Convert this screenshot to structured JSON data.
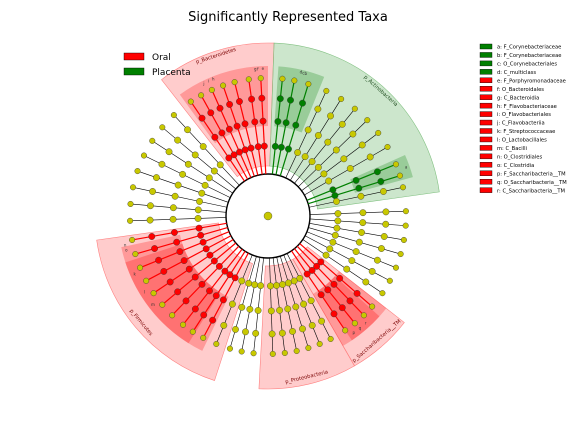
{
  "chart_data": {
    "type": "cladogram",
    "title": "Significantly Represented Taxa",
    "colors": {
      "Oral": "#ff0000",
      "Placenta": "#008000",
      "Oral_shade": "#ff8080",
      "Placenta_shade": "#80c080",
      "neutral_node": "#c8c800"
    },
    "legend": {
      "placement": "top-left",
      "entries": [
        {
          "label": "Oral",
          "color": "#ff0000"
        },
        {
          "label": "Placenta",
          "color": "#008000"
        }
      ]
    },
    "taxa_key": [
      {
        "text": "a: F_Corynebacteriaceae",
        "group": "Placenta"
      },
      {
        "text": "b: F_Corynebacteriaceae",
        "group": "Placenta"
      },
      {
        "text": "c: O_Corynebacteriales",
        "group": "Placenta"
      },
      {
        "text": "d: C_multiclass",
        "group": "Placenta"
      },
      {
        "text": "e: F_Porphyromonadaceae",
        "group": "Oral"
      },
      {
        "text": "f: O_Bacteroidales",
        "group": "Oral"
      },
      {
        "text": "g: C_Bacteroidia",
        "group": "Oral"
      },
      {
        "text": "h: F_Flavobacteriaceae",
        "group": "Oral"
      },
      {
        "text": "i: O_Flavobacteriales",
        "group": "Oral"
      },
      {
        "text": "j: C_Flavobacteriia",
        "group": "Oral"
      },
      {
        "text": "k: F_Streptococcaceae",
        "group": "Oral"
      },
      {
        "text": "l: O_Lactobacillales",
        "group": "Oral"
      },
      {
        "text": "m: C_Bacilli",
        "group": "Oral"
      },
      {
        "text": "n: O_Clostridiales",
        "group": "Oral"
      },
      {
        "text": "o: C_Clostridia",
        "group": "Oral"
      },
      {
        "text": "p: F_Saccharibacteria__TM",
        "group": "Oral"
      },
      {
        "text": "q: O_Saccharibacteria__TM",
        "group": "Oral"
      },
      {
        "text": "r: C_Saccharibacteria__TM",
        "group": "Oral"
      }
    ],
    "phylum_sectors": [
      {
        "label": "p_Bacteroidetes",
        "group": "Oral",
        "start": 322,
        "end": 2
      },
      {
        "label": "p_Actinobacteria",
        "group": "Placenta",
        "start": 2,
        "end": 82
      },
      {
        "label": "p_Proteobacteria",
        "group": "Oral",
        "start": 150,
        "end": 183
      },
      {
        "label": "p_Saccharibacteria__TM",
        "group": "Oral",
        "start": 128,
        "end": 150
      },
      {
        "label": "p_Firmicutes",
        "group": "Oral",
        "start": 198,
        "end": 262
      }
    ],
    "class_sectors": [
      {
        "group": "Oral",
        "start": 324,
        "end": 348
      },
      {
        "group": "Oral",
        "start": 348,
        "end": 0
      },
      {
        "group": "Placenta",
        "start": 4,
        "end": 22
      },
      {
        "group": "Placenta",
        "start": 66,
        "end": 75
      },
      {
        "group": "Oral",
        "start": 206,
        "end": 258
      },
      {
        "group": "Oral",
        "start": 212,
        "end": 252
      },
      {
        "group": "Oral",
        "start": 128,
        "end": 150
      },
      {
        "group": "Oral",
        "start": 132,
        "end": 146
      }
    ],
    "sector_letters": [
      {
        "letter": "j",
        "angle": 334
      },
      {
        "letter": "i",
        "angle": 336
      },
      {
        "letter": "h",
        "angle": 338
      },
      {
        "letter": "g",
        "angle": 355
      },
      {
        "letter": "f",
        "angle": 356
      },
      {
        "letter": "e",
        "angle": 358
      },
      {
        "letter": "d",
        "angle": 13
      },
      {
        "letter": "c",
        "angle": 14
      },
      {
        "letter": "b",
        "angle": 15
      },
      {
        "letter": "a",
        "angle": 71
      },
      {
        "letter": "m",
        "angle": 232
      },
      {
        "letter": "l",
        "angle": 238
      },
      {
        "letter": "k",
        "angle": 246
      },
      {
        "letter": "o",
        "angle": 256
      },
      {
        "letter": "n",
        "angle": 258
      },
      {
        "letter": "r",
        "angle": 138
      },
      {
        "letter": "q",
        "angle": 141
      },
      {
        "letter": "p",
        "angle": 144
      }
    ],
    "branches": [
      {
        "angle": 326,
        "group": "Oral"
      },
      {
        "angle": 331,
        "group": "Oral"
      },
      {
        "angle": 336,
        "group": "Oral"
      },
      {
        "angle": 341,
        "group": "Oral"
      },
      {
        "angle": 346,
        "group": "Oral"
      },
      {
        "angle": 352,
        "group": "Oral"
      },
      {
        "angle": 357,
        "group": "Oral"
      },
      {
        "angle": 6,
        "group": "Placenta"
      },
      {
        "angle": 11,
        "group": "Placenta"
      },
      {
        "angle": 17,
        "group": "Placenta"
      },
      {
        "angle": 25,
        "group": "none"
      },
      {
        "angle": 32,
        "group": "none"
      },
      {
        "angle": 39,
        "group": "none"
      },
      {
        "angle": 46,
        "group": "none"
      },
      {
        "angle": 53,
        "group": "none"
      },
      {
        "angle": 60,
        "group": "none"
      },
      {
        "angle": 68,
        "group": "Placenta"
      },
      {
        "angle": 73,
        "group": "Placenta"
      },
      {
        "angle": 78,
        "group": "none"
      },
      {
        "angle": 88,
        "group": "none"
      },
      {
        "angle": 94,
        "group": "none"
      },
      {
        "angle": 100,
        "group": "none"
      },
      {
        "angle": 106,
        "group": "none"
      },
      {
        "angle": 112,
        "group": "none"
      },
      {
        "angle": 118,
        "group": "none"
      },
      {
        "angle": 124,
        "group": "none"
      },
      {
        "angle": 131,
        "group": "Oral"
      },
      {
        "angle": 136,
        "group": "Oral"
      },
      {
        "angle": 141,
        "group": "Oral"
      },
      {
        "angle": 146,
        "group": "Oral"
      },
      {
        "angle": 153,
        "group": "none"
      },
      {
        "angle": 158,
        "group": "none"
      },
      {
        "angle": 163,
        "group": "none"
      },
      {
        "angle": 168,
        "group": "none"
      },
      {
        "angle": 173,
        "group": "none"
      },
      {
        "angle": 178,
        "group": "none"
      },
      {
        "angle": 186,
        "group": "none"
      },
      {
        "angle": 191,
        "group": "none"
      },
      {
        "angle": 196,
        "group": "none"
      },
      {
        "angle": 202,
        "group": "none"
      },
      {
        "angle": 208,
        "group": "Oral"
      },
      {
        "angle": 213,
        "group": "Oral"
      },
      {
        "angle": 218,
        "group": "Oral"
      },
      {
        "angle": 224,
        "group": "Oral"
      },
      {
        "angle": 230,
        "group": "Oral"
      },
      {
        "angle": 236,
        "group": "Oral"
      },
      {
        "angle": 242,
        "group": "Oral"
      },
      {
        "angle": 248,
        "group": "Oral"
      },
      {
        "angle": 254,
        "group": "Oral"
      },
      {
        "angle": 260,
        "group": "Oral"
      },
      {
        "angle": 268,
        "group": "none"
      },
      {
        "angle": 275,
        "group": "none"
      },
      {
        "angle": 282,
        "group": "none"
      },
      {
        "angle": 289,
        "group": "none"
      },
      {
        "angle": 296,
        "group": "none"
      },
      {
        "angle": 303,
        "group": "none"
      },
      {
        "angle": 310,
        "group": "none"
      },
      {
        "angle": 317,
        "group": "none"
      }
    ]
  }
}
